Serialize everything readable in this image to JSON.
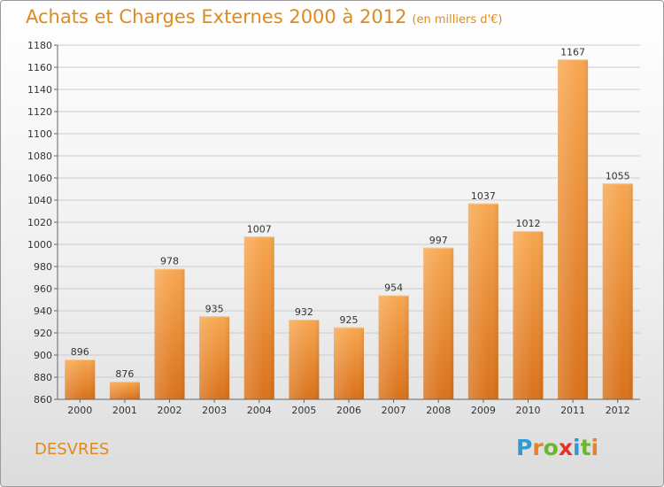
{
  "title": "Achats et Charges Externes 2000 à 2012",
  "subtitle": "(en milliers d'€)",
  "location": "DESVRES",
  "logo": {
    "letters": [
      "P",
      "r",
      "o",
      "x",
      "i",
      "t",
      "i"
    ],
    "colors": [
      "#2e9ad6",
      "#e6832a",
      "#6ab82c",
      "#e5332a",
      "#2e9ad6",
      "#6ab82c",
      "#e6832a"
    ]
  },
  "colors": {
    "accent": "#e08a1e",
    "bar_top": "#f7a750",
    "bar_bottom": "#d9711a",
    "grid": "#cccccc"
  },
  "chart_data": {
    "type": "bar",
    "title": "Achats et Charges Externes 2000 à 2012",
    "subtitle": "(en milliers d'€)",
    "categories": [
      "2000",
      "2001",
      "2002",
      "2003",
      "2004",
      "2005",
      "2006",
      "2007",
      "2008",
      "2009",
      "2010",
      "2011",
      "2012"
    ],
    "values": [
      896,
      876,
      978,
      935,
      1007,
      932,
      925,
      954,
      997,
      1037,
      1012,
      1167,
      1055
    ],
    "ylim": [
      860,
      1180
    ],
    "yticks": [
      860,
      880,
      900,
      920,
      940,
      960,
      980,
      1000,
      1020,
      1040,
      1060,
      1080,
      1100,
      1120,
      1140,
      1160,
      1180
    ],
    "grid": true,
    "legend": "none"
  }
}
